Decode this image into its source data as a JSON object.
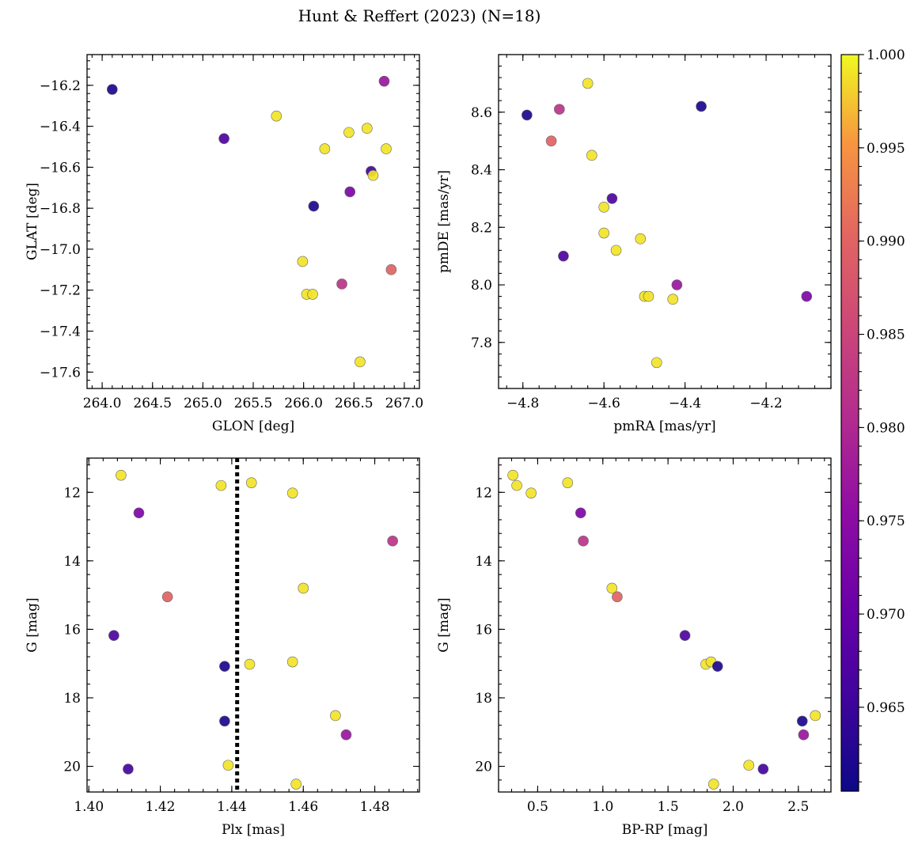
{
  "figure": {
    "title": "Hunt & Reffert (2023) (N=18)"
  },
  "colorbar": {
    "range": [
      0.9605,
      1.0
    ],
    "ticks": [
      0.965,
      0.97,
      0.975,
      0.98,
      0.985,
      0.99,
      0.995,
      1.0
    ],
    "tick_labels": [
      "0.965",
      "0.970",
      "0.975",
      "0.980",
      "0.985",
      "0.990",
      "0.995",
      "1.000"
    ],
    "colormap": "plasma"
  },
  "chart_data": [
    {
      "type": "scatter",
      "id": "sky",
      "xlabel": "GLON [deg]",
      "ylabel": "GLAT [deg]",
      "xlim": [
        263.85,
        267.15
      ],
      "ylim": [
        -17.68,
        -16.05
      ],
      "y_inverted": false,
      "xticks": [
        264.0,
        264.5,
        265.0,
        265.5,
        266.0,
        266.5,
        267.0
      ],
      "xtick_labels": [
        "264.0",
        "264.5",
        "265.0",
        "265.5",
        "266.0",
        "266.5",
        "267.0"
      ],
      "yticks": [
        -16.2,
        -16.4,
        -16.6,
        -16.8,
        -17.0,
        -17.2,
        -17.4,
        -17.6
      ],
      "ytick_labels": [
        "−16.2",
        "−16.4",
        "−16.6",
        "−16.8",
        "−17.0",
        "−17.2",
        "−17.4",
        "−17.6"
      ],
      "points": [
        {
          "x": 264.1,
          "y": -16.22,
          "c": 0.962
        },
        {
          "x": 265.21,
          "y": -16.46,
          "c": 0.967
        },
        {
          "x": 265.73,
          "y": -16.35,
          "c": 0.999
        },
        {
          "x": 266.8,
          "y": -16.18,
          "c": 0.977
        },
        {
          "x": 266.45,
          "y": -16.43,
          "c": 0.999
        },
        {
          "x": 266.63,
          "y": -16.41,
          "c": 0.999
        },
        {
          "x": 266.21,
          "y": -16.51,
          "c": 0.999
        },
        {
          "x": 266.82,
          "y": -16.51,
          "c": 0.999
        },
        {
          "x": 266.67,
          "y": -16.62,
          "c": 0.966
        },
        {
          "x": 266.69,
          "y": -16.64,
          "c": 0.999
        },
        {
          "x": 266.46,
          "y": -16.72,
          "c": 0.973
        },
        {
          "x": 266.1,
          "y": -16.79,
          "c": 0.962
        },
        {
          "x": 265.99,
          "y": -17.06,
          "c": 0.999
        },
        {
          "x": 266.87,
          "y": -17.1,
          "c": 0.99
        },
        {
          "x": 266.38,
          "y": -17.17,
          "c": 0.982
        },
        {
          "x": 266.03,
          "y": -17.22,
          "c": 0.999
        },
        {
          "x": 266.09,
          "y": -17.22,
          "c": 0.999
        },
        {
          "x": 266.56,
          "y": -17.55,
          "c": 0.999
        }
      ]
    },
    {
      "type": "scatter",
      "id": "pm",
      "xlabel": "pmRA [mas/yr]",
      "ylabel": "pmDE [mas/yr]",
      "xlim": [
        -4.86,
        -4.04
      ],
      "ylim": [
        7.64,
        8.8
      ],
      "y_inverted": false,
      "xticks": [
        -4.8,
        -4.6,
        -4.4,
        -4.2
      ],
      "xtick_labels": [
        "−4.8",
        "−4.6",
        "−4.4",
        "−4.2"
      ],
      "yticks": [
        7.8,
        8.0,
        8.2,
        8.4,
        8.6
      ],
      "ytick_labels": [
        "7.8",
        "8.0",
        "8.2",
        "8.4",
        "8.6"
      ],
      "points": [
        {
          "x": -4.64,
          "y": 8.7,
          "c": 0.999
        },
        {
          "x": -4.79,
          "y": 8.59,
          "c": 0.962
        },
        {
          "x": -4.71,
          "y": 8.61,
          "c": 0.982
        },
        {
          "x": -4.36,
          "y": 8.62,
          "c": 0.962
        },
        {
          "x": -4.73,
          "y": 8.5,
          "c": 0.99
        },
        {
          "x": -4.63,
          "y": 8.45,
          "c": 0.999
        },
        {
          "x": -4.58,
          "y": 8.3,
          "c": 0.967
        },
        {
          "x": -4.6,
          "y": 8.27,
          "c": 0.999
        },
        {
          "x": -4.6,
          "y": 8.18,
          "c": 0.999
        },
        {
          "x": -4.51,
          "y": 8.16,
          "c": 0.999
        },
        {
          "x": -4.57,
          "y": 8.12,
          "c": 0.999
        },
        {
          "x": -4.7,
          "y": 8.1,
          "c": 0.967
        },
        {
          "x": -4.42,
          "y": 8.0,
          "c": 0.977
        },
        {
          "x": -4.5,
          "y": 7.96,
          "c": 0.999
        },
        {
          "x": -4.49,
          "y": 7.96,
          "c": 0.999
        },
        {
          "x": -4.1,
          "y": 7.96,
          "c": 0.973
        },
        {
          "x": -4.43,
          "y": 7.95,
          "c": 0.999
        },
        {
          "x": -4.47,
          "y": 7.73,
          "c": 0.999
        }
      ]
    },
    {
      "type": "scatter",
      "id": "plx",
      "xlabel": "Plx [mas]",
      "ylabel": "G [mag]",
      "xlim": [
        1.3995,
        1.4925
      ],
      "ylim": [
        11.0,
        20.75
      ],
      "y_inverted": true,
      "xticks": [
        1.4,
        1.42,
        1.44,
        1.46,
        1.48
      ],
      "xtick_labels": [
        "1.40",
        "1.42",
        "1.44",
        "1.46",
        "1.48"
      ],
      "yticks": [
        12,
        14,
        16,
        18,
        20
      ],
      "ytick_labels": [
        "12",
        "14",
        "16",
        "18",
        "20"
      ],
      "vline": 1.4415,
      "points": [
        {
          "x": 1.409,
          "y": 11.5,
          "c": 0.999
        },
        {
          "x": 1.437,
          "y": 11.8,
          "c": 0.999
        },
        {
          "x": 1.4455,
          "y": 11.72,
          "c": 0.999
        },
        {
          "x": 1.457,
          "y": 12.02,
          "c": 0.999
        },
        {
          "x": 1.414,
          "y": 12.6,
          "c": 0.973
        },
        {
          "x": 1.485,
          "y": 13.42,
          "c": 0.982
        },
        {
          "x": 1.46,
          "y": 14.8,
          "c": 0.999
        },
        {
          "x": 1.422,
          "y": 15.05,
          "c": 0.99
        },
        {
          "x": 1.407,
          "y": 16.18,
          "c": 0.967
        },
        {
          "x": 1.457,
          "y": 16.95,
          "c": 0.999
        },
        {
          "x": 1.445,
          "y": 17.02,
          "c": 0.999
        },
        {
          "x": 1.438,
          "y": 17.08,
          "c": 0.962
        },
        {
          "x": 1.469,
          "y": 18.52,
          "c": 0.999
        },
        {
          "x": 1.438,
          "y": 18.68,
          "c": 0.962
        },
        {
          "x": 1.472,
          "y": 19.08,
          "c": 0.977
        },
        {
          "x": 1.439,
          "y": 19.97,
          "c": 0.999
        },
        {
          "x": 1.411,
          "y": 20.08,
          "c": 0.966
        },
        {
          "x": 1.458,
          "y": 20.52,
          "c": 0.999
        }
      ]
    },
    {
      "type": "scatter",
      "id": "cmd",
      "xlabel": "BP-RP [mag]",
      "ylabel": "G [mag]",
      "xlim": [
        0.2,
        2.75
      ],
      "ylim": [
        11.0,
        20.75
      ],
      "y_inverted": true,
      "xticks": [
        0.5,
        1.0,
        1.5,
        2.0,
        2.5
      ],
      "xtick_labels": [
        "0.5",
        "1.0",
        "1.5",
        "2.0",
        "2.5"
      ],
      "yticks": [
        12,
        14,
        16,
        18,
        20
      ],
      "ytick_labels": [
        "12",
        "14",
        "16",
        "18",
        "20"
      ],
      "points": [
        {
          "x": 0.31,
          "y": 11.5,
          "c": 0.999
        },
        {
          "x": 0.34,
          "y": 11.8,
          "c": 0.999
        },
        {
          "x": 0.45,
          "y": 12.02,
          "c": 0.999
        },
        {
          "x": 0.73,
          "y": 11.72,
          "c": 0.999
        },
        {
          "x": 0.83,
          "y": 12.6,
          "c": 0.973
        },
        {
          "x": 0.85,
          "y": 13.42,
          "c": 0.982
        },
        {
          "x": 1.07,
          "y": 14.8,
          "c": 0.999
        },
        {
          "x": 1.11,
          "y": 15.05,
          "c": 0.99
        },
        {
          "x": 1.63,
          "y": 16.18,
          "c": 0.967
        },
        {
          "x": 1.79,
          "y": 17.02,
          "c": 0.999
        },
        {
          "x": 1.83,
          "y": 16.95,
          "c": 0.999
        },
        {
          "x": 1.88,
          "y": 17.08,
          "c": 0.962
        },
        {
          "x": 2.53,
          "y": 18.68,
          "c": 0.962
        },
        {
          "x": 2.63,
          "y": 18.52,
          "c": 0.999
        },
        {
          "x": 2.54,
          "y": 19.08,
          "c": 0.977
        },
        {
          "x": 2.12,
          "y": 19.97,
          "c": 0.999
        },
        {
          "x": 2.23,
          "y": 20.08,
          "c": 0.966
        },
        {
          "x": 1.85,
          "y": 20.52,
          "c": 0.999
        }
      ]
    }
  ]
}
